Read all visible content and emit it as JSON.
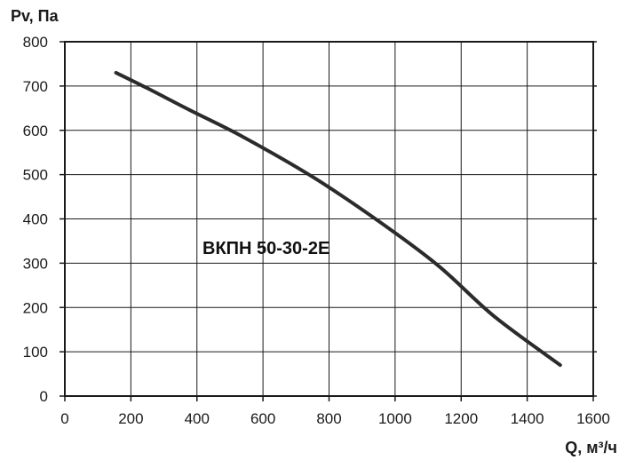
{
  "chart_data": {
    "type": "line",
    "xlabel": "Q, м³/ч",
    "ylabel": "Pv, Па",
    "xlim": [
      0,
      1600
    ],
    "ylim": [
      0,
      800
    ],
    "xticks": [
      0,
      200,
      400,
      600,
      800,
      1000,
      1200,
      1400,
      1600
    ],
    "yticks": [
      0,
      100,
      200,
      300,
      400,
      500,
      600,
      700,
      800
    ],
    "grid": true,
    "annotation": "ВКПН 50-30-2E",
    "series": [
      {
        "x": [
          155,
          250,
          380,
          540,
          750,
          950,
          1130,
          1300,
          1500
        ],
        "y": [
          730,
          695,
          645,
          585,
          495,
          395,
          295,
          180,
          70
        ]
      }
    ],
    "colors": {
      "line": "#2b2b2b",
      "grid": "#1a1a1a",
      "axis": "#1a1a1a"
    }
  }
}
